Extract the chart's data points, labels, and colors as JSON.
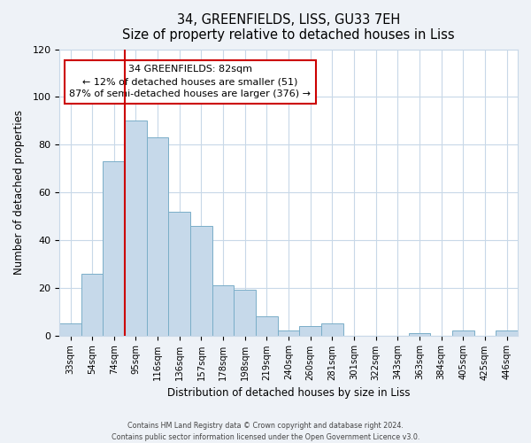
{
  "title": "34, GREENFIELDS, LISS, GU33 7EH",
  "subtitle": "Size of property relative to detached houses in Liss",
  "xlabel": "Distribution of detached houses by size in Liss",
  "ylabel": "Number of detached properties",
  "bar_labels": [
    "33sqm",
    "54sqm",
    "74sqm",
    "95sqm",
    "116sqm",
    "136sqm",
    "157sqm",
    "178sqm",
    "198sqm",
    "219sqm",
    "240sqm",
    "260sqm",
    "281sqm",
    "301sqm",
    "322sqm",
    "343sqm",
    "363sqm",
    "384sqm",
    "405sqm",
    "425sqm",
    "446sqm"
  ],
  "bar_values": [
    5,
    26,
    73,
    90,
    83,
    52,
    46,
    21,
    19,
    8,
    2,
    4,
    5,
    0,
    0,
    0,
    1,
    0,
    2,
    0,
    2
  ],
  "bar_color": "#c6d9ea",
  "bar_edge_color": "#7aaec8",
  "ylim": [
    0,
    120
  ],
  "yticks": [
    0,
    20,
    40,
    60,
    80,
    100,
    120
  ],
  "property_label": "34 GREENFIELDS: 82sqm",
  "annotation_line1": "← 12% of detached houses are smaller (51)",
  "annotation_line2": "87% of semi-detached houses are larger (376) →",
  "footer_line1": "Contains HM Land Registry data © Crown copyright and database right 2024.",
  "footer_line2": "Contains public sector information licensed under the Open Government Licence v3.0.",
  "background_color": "#eef2f7",
  "plot_background_color": "#ffffff",
  "grid_color": "#c8d8e8",
  "vline_color": "#cc0000",
  "vline_x": 2.5
}
